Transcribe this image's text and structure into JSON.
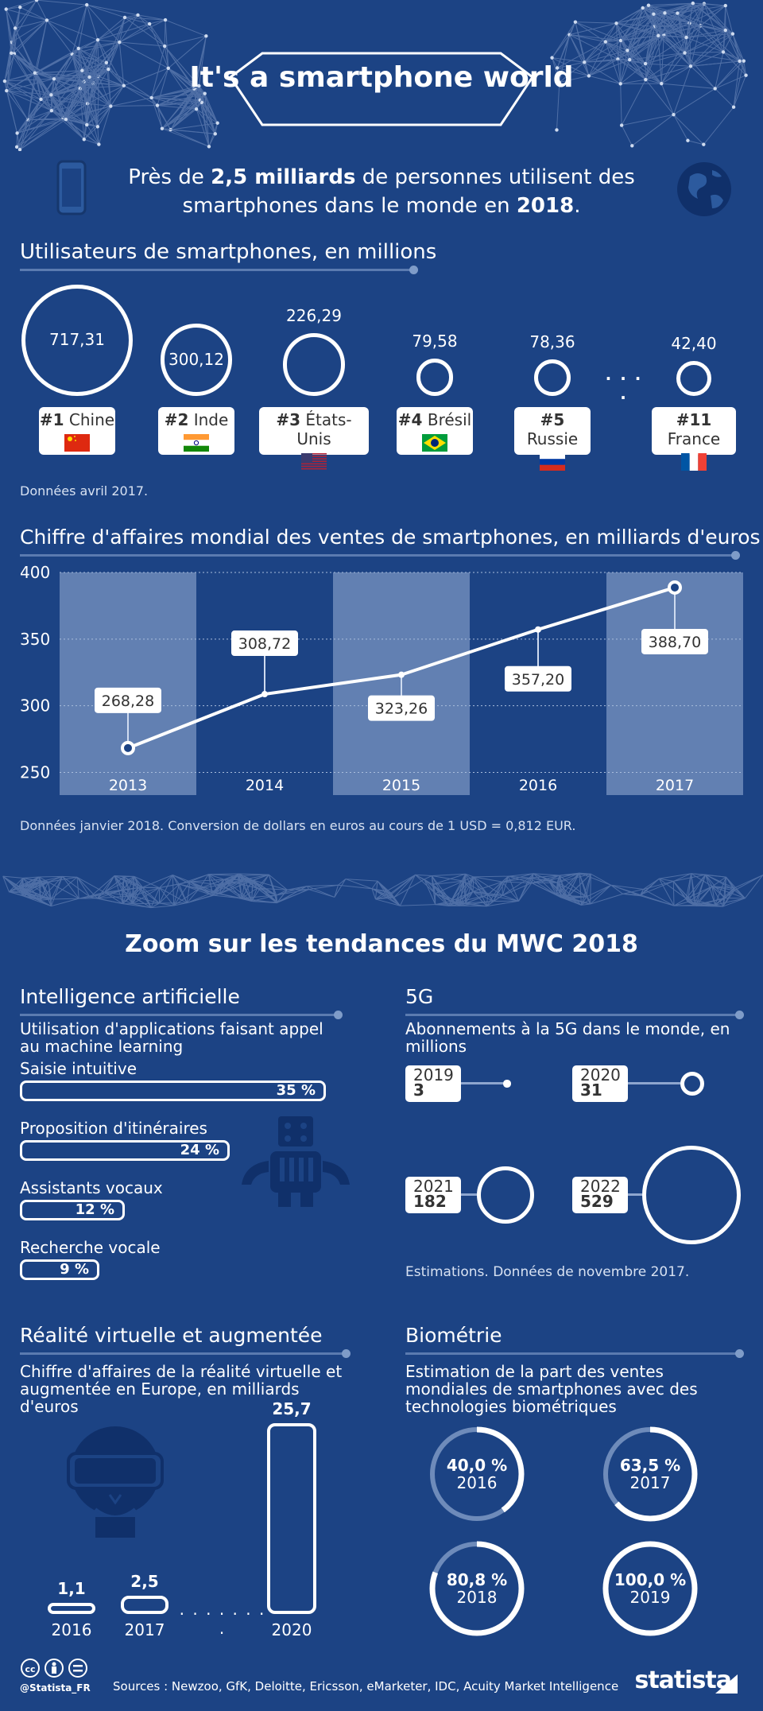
{
  "header": {
    "title": "It's a smartphone world"
  },
  "intro": {
    "part1": "Près de ",
    "bold1": "2,5 milliards",
    "part2": " de personnes utilisent des smartphones dans le monde en ",
    "bold2": "2018",
    "part3": "."
  },
  "users": {
    "title": "Utilisateurs de smartphones, en millions",
    "countries": [
      {
        "rank": "#1",
        "name": "Chine",
        "value": "717,31",
        "flag": "cn"
      },
      {
        "rank": "#2",
        "name": "Inde",
        "value": "300,12",
        "flag": "in"
      },
      {
        "rank": "#3",
        "name": "États-Unis",
        "value": "226,29",
        "flag": "us"
      },
      {
        "rank": "#4",
        "name": "Brésil",
        "value": "79,58",
        "flag": "br"
      },
      {
        "rank": "#5",
        "name": "Russie",
        "value": "78,36",
        "flag": "ru"
      },
      {
        "rank": "#11",
        "name": "France",
        "value": "42,40",
        "flag": "fr"
      }
    ],
    "ellipsis": "· · · ·",
    "note": "Données avril 2017."
  },
  "revenue": {
    "title": "Chiffre d'affaires mondial des ventes de smartphones, en milliards d'euros",
    "note": "Données janvier 2018. Conversion de dollars en euros au cours de 1 USD = 0,812 EUR."
  },
  "chart_data": {
    "type": "line",
    "title": "Chiffre d'affaires mondial des ventes de smartphones, en milliards d'euros",
    "categories": [
      "2013",
      "2014",
      "2015",
      "2016",
      "2017"
    ],
    "values": [
      268.28,
      308.72,
      323.26,
      357.2,
      388.7
    ],
    "value_labels": [
      "268,28",
      "308,72",
      "323,26",
      "357,20",
      "388,70"
    ],
    "yticks": [
      250,
      300,
      350,
      400
    ],
    "ylim": [
      233,
      400
    ],
    "grid": true
  },
  "mwc": {
    "title": "Zoom sur les tendances du MWC 2018"
  },
  "ai": {
    "title": "Intelligence artificielle",
    "subtitle": "Utilisation d'applications faisant appel au machine learning",
    "bars": [
      {
        "label": "Saisie intuitive",
        "value": "35 %",
        "percent": 35
      },
      {
        "label": "Proposition d'itinéraires",
        "value": "24 %",
        "percent": 24
      },
      {
        "label": "Assistants vocaux",
        "value": "12 %",
        "percent": 12
      },
      {
        "label": "Recherche vocale",
        "value": "9 %",
        "percent": 9
      }
    ]
  },
  "fiveg": {
    "title": "5G",
    "subtitle": "Abonnements à la 5G dans le monde, en millions",
    "items": [
      {
        "year": "2019",
        "value": "3",
        "amount": 3
      },
      {
        "year": "2020",
        "value": "31",
        "amount": 31
      },
      {
        "year": "2021",
        "value": "182",
        "amount": 182
      },
      {
        "year": "2022",
        "value": "529",
        "amount": 529
      }
    ],
    "note": "Estimations. Données de novembre 2017."
  },
  "vr": {
    "title": "Réalité virtuelle et augmentée",
    "subtitle": "Chiffre d'affaires de la réalité virtuelle et augmentée en Europe, en milliards d'euros",
    "items": [
      {
        "year": "2016",
        "value": "1,1",
        "amount": 1.1
      },
      {
        "year": "2017",
        "value": "2,5",
        "amount": 2.5
      },
      {
        "year": "2020",
        "value": "25,7",
        "amount": 25.7
      }
    ],
    "dots": "· · · · · · · ·"
  },
  "bio": {
    "title": "Biométrie",
    "subtitle": "Estimation de la part des ventes mondiales de smartphones avec des technologies biométriques",
    "items": [
      {
        "year": "2016",
        "value": "40,0 %",
        "percent": 40.0
      },
      {
        "year": "2017",
        "value": "63,5 %",
        "percent": 63.5
      },
      {
        "year": "2018",
        "value": "80,8 %",
        "percent": 80.8
      },
      {
        "year": "2019",
        "value": "100,0 %",
        "percent": 100.0
      }
    ]
  },
  "footer": {
    "handle": "@Statista_FR",
    "sources": "Sources : Newzoo, GfK, Deloitte, Ericsson, eMarketer, IDC, Acuity Market Intelligence",
    "brand": "statista"
  },
  "colors": {
    "background": "#1c4384",
    "accent": "#5b7bb0",
    "chart_band": "#6e8bba"
  }
}
